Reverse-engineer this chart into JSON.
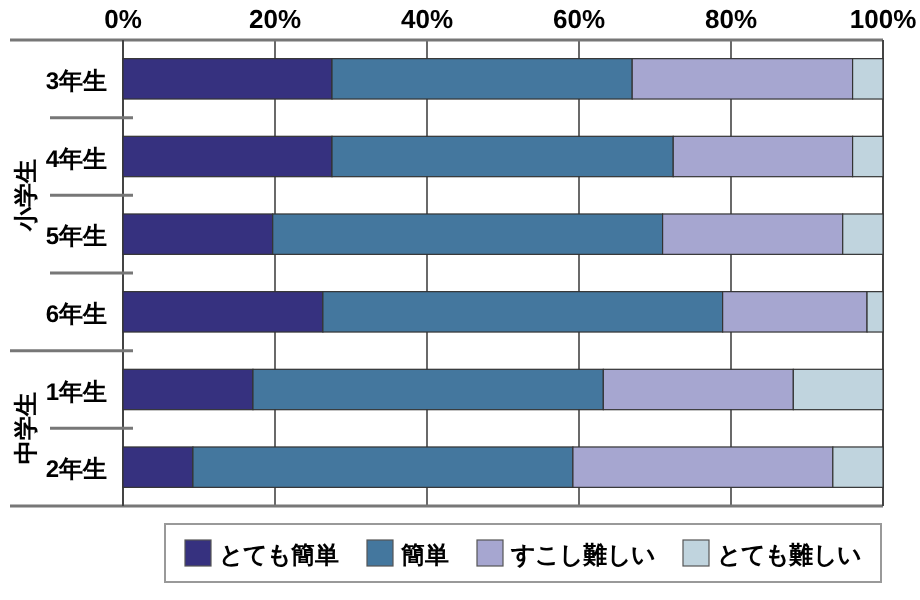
{
  "chart_data": {
    "type": "bar",
    "orientation": "horizontal",
    "stacked": true,
    "categories": [
      "3年生",
      "4年生",
      "5年生",
      "6年生",
      "1年生",
      "2年生"
    ],
    "series": [
      {
        "name": "とても簡単",
        "color": "#36317f",
        "values": [
          27.5,
          27.5,
          19.7,
          26.3,
          17.1,
          9.2
        ]
      },
      {
        "name": "簡単",
        "color": "#44779e",
        "values": [
          39.5,
          44.9,
          51.3,
          52.6,
          46.1,
          50.0
        ]
      },
      {
        "name": "すこし難しい",
        "color": "#a6a6d0",
        "values": [
          29.0,
          23.6,
          23.7,
          19.0,
          25.0,
          34.2
        ]
      },
      {
        "name": "とても難しい",
        "color": "#c0d4de",
        "values": [
          4.0,
          4.0,
          5.3,
          2.1,
          11.8,
          6.6
        ]
      }
    ],
    "xlim": [
      0,
      100
    ],
    "xticks": [
      {
        "value": 0,
        "label": "0%"
      },
      {
        "value": 20,
        "label": "20%"
      },
      {
        "value": 40,
        "label": "40%"
      },
      {
        "value": 60,
        "label": "60%"
      },
      {
        "value": 80,
        "label": "80%"
      },
      {
        "value": 100,
        "label": "100%"
      }
    ],
    "grid": "x",
    "legend": "bottom",
    "annotations": [
      "小学生",
      "中学生"
    ]
  }
}
